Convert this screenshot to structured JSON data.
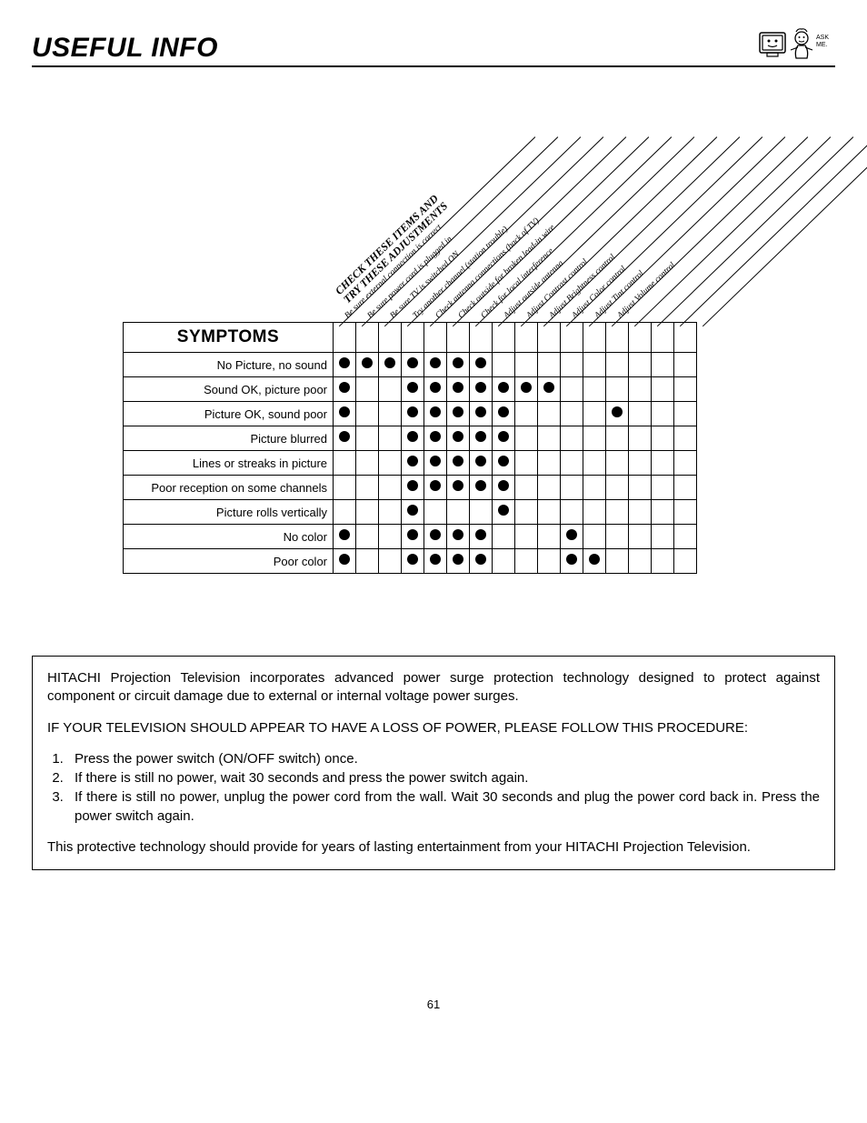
{
  "page": {
    "title": "USEFUL INFO",
    "number": "61",
    "mascot_label": "ASK ME."
  },
  "troubleshoot": {
    "main_header_line1": "CHECK THESE ITEMS AND",
    "main_header_line2": "TRY THESE ADJUSTMENTS",
    "symptoms_label": "SYMPTOMS",
    "columns": [
      "Be sure external connection is correct",
      "Be sure power cord is plugged in",
      "Be sure TV is switched ON",
      "Try another channel (station trouble)",
      "Check antenna connections (back of TV)",
      "Check outside for broken lead-in wire",
      "Check for local interference",
      "Adjust outside antenna",
      "Adjust Contrast control",
      "Adjust Brightness control",
      "Adjust Color control",
      "Adjust Tint control",
      "Adjust Volume control"
    ],
    "rows": [
      {
        "label": "No Picture, no sound",
        "dots": [
          1,
          1,
          1,
          1,
          1,
          1,
          1,
          0,
          0,
          0,
          0,
          0,
          0
        ]
      },
      {
        "label": "Sound OK, picture poor",
        "dots": [
          1,
          0,
          0,
          1,
          1,
          1,
          1,
          1,
          1,
          1,
          0,
          0,
          0
        ]
      },
      {
        "label": "Picture OK, sound poor",
        "dots": [
          1,
          0,
          0,
          1,
          1,
          1,
          1,
          1,
          0,
          0,
          0,
          0,
          1
        ]
      },
      {
        "label": "Picture blurred",
        "dots": [
          1,
          0,
          0,
          1,
          1,
          1,
          1,
          1,
          0,
          0,
          0,
          0,
          0
        ]
      },
      {
        "label": "Lines or streaks in picture",
        "dots": [
          0,
          0,
          0,
          1,
          1,
          1,
          1,
          1,
          0,
          0,
          0,
          0,
          0
        ]
      },
      {
        "label": "Poor reception on some channels",
        "dots": [
          0,
          0,
          0,
          1,
          1,
          1,
          1,
          1,
          0,
          0,
          0,
          0,
          0
        ]
      },
      {
        "label": "Picture rolls vertically",
        "dots": [
          0,
          0,
          0,
          1,
          0,
          0,
          0,
          1,
          0,
          0,
          0,
          0,
          0
        ]
      },
      {
        "label": "No color",
        "dots": [
          1,
          0,
          0,
          1,
          1,
          1,
          1,
          0,
          0,
          0,
          1,
          0,
          0
        ]
      },
      {
        "label": "Poor color",
        "dots": [
          1,
          0,
          0,
          1,
          1,
          1,
          1,
          0,
          0,
          0,
          1,
          1,
          0
        ]
      }
    ]
  },
  "infobox": {
    "intro": "HITACHI Projection Television incorporates advanced power surge protection technology designed to protect against component or circuit damage due to external or internal voltage power surges.",
    "heading": "IF YOUR TELEVISION SHOULD APPEAR TO HAVE A LOSS OF POWER, PLEASE FOLLOW THIS PROCEDURE:",
    "steps": [
      "Press the power switch (ON/OFF switch) once.",
      "If there is still no power, wait 30 seconds and press the power switch again.",
      "If there is still no power, unplug the power cord from the wall. Wait 30 seconds and plug the power cord back in. Press the power switch again."
    ],
    "outro": "This protective technology should provide for years of lasting entertainment from your HITACHI Projection Television."
  }
}
